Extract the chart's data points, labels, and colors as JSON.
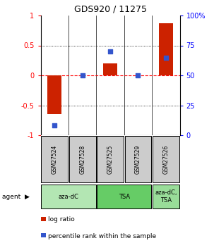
{
  "title": "GDS920 / 11275",
  "samples": [
    "GSM27524",
    "GSM27528",
    "GSM27525",
    "GSM27529",
    "GSM27526"
  ],
  "log_ratios": [
    -0.65,
    0.0,
    0.2,
    0.0,
    0.87
  ],
  "percentile_ranks": [
    8.0,
    50.0,
    70.0,
    50.0,
    65.0
  ],
  "groups": [
    {
      "label": "aza-dC",
      "start": 0,
      "end": 2,
      "color": "#b3e6b3"
    },
    {
      "label": "TSA",
      "start": 2,
      "end": 4,
      "color": "#66cc66"
    },
    {
      "label": "aza-dC,\nTSA",
      "start": 4,
      "end": 5,
      "color": "#99dd99"
    }
  ],
  "ylim_left": [
    -1.0,
    1.0
  ],
  "yticks_left": [
    -1.0,
    -0.5,
    0.0,
    0.5,
    1.0
  ],
  "ytick_labels_left": [
    "-1",
    "-0.5",
    "0",
    "0.5",
    "1"
  ],
  "yticks_right": [
    0,
    25,
    50,
    75,
    100
  ],
  "ytick_labels_right": [
    "0",
    "25",
    "50",
    "75",
    "100%"
  ],
  "hlines": [
    -0.5,
    0.0,
    0.5
  ],
  "bar_color": "#cc2200",
  "dot_color": "#3355cc",
  "bar_width": 0.5,
  "dot_size": 25,
  "legend_log_ratio": "log ratio",
  "legend_percentile": "percentile rank within the sample",
  "sample_box_color": "#cccccc",
  "background_color": "#ffffff"
}
